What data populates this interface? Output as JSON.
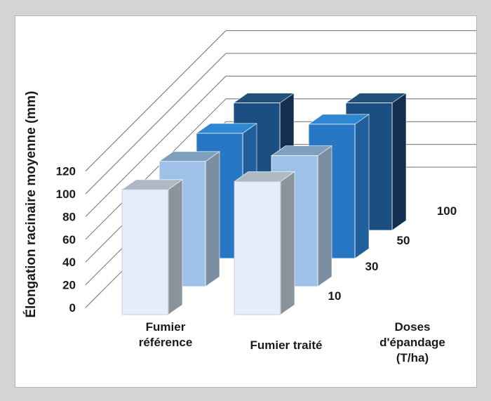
{
  "chart_data": {
    "type": "bar",
    "subtype": "3d-column",
    "ylabel": "Élongation racinaire moyenne (mm)",
    "categories": [
      "Fumier\nréférence",
      "Fumier traité"
    ],
    "depth_axis_label": "Doses d'épandage (T/ha)",
    "ylim": [
      0,
      120
    ],
    "yticks": [
      "0",
      "20",
      "40",
      "60",
      "80",
      "100",
      "120"
    ],
    "series": [
      {
        "name": "10",
        "color": "#e4edf8",
        "values": [
          110,
          117
        ]
      },
      {
        "name": "30",
        "color": "#9dc1e7",
        "values": [
          110,
          115
        ]
      },
      {
        "name": "50",
        "color": "#2777c4",
        "values": [
          110,
          118
        ]
      },
      {
        "name": "100",
        "color": "#1b4f83",
        "values": [
          112,
          112
        ]
      }
    ],
    "grid": true
  }
}
